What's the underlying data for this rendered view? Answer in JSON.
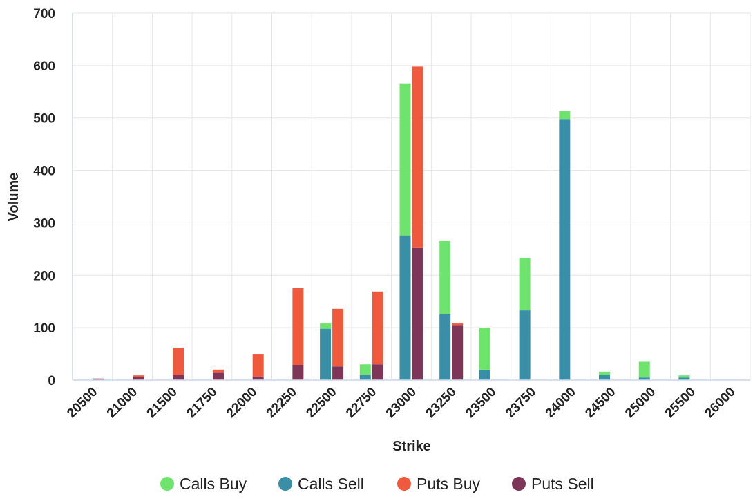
{
  "chart_data": {
    "type": "bar",
    "stacked": true,
    "title": "",
    "xlabel": "Strike",
    "ylabel": "Volume",
    "ylim": [
      0,
      700
    ],
    "yticks": [
      0,
      100,
      200,
      300,
      400,
      500,
      600,
      700
    ],
    "grid": true,
    "legend_position": "bottom-center",
    "categories": [
      "20500",
      "21000",
      "21500",
      "21750",
      "22000",
      "22250",
      "22500",
      "22750",
      "23000",
      "23250",
      "23500",
      "23750",
      "24000",
      "24500",
      "25000",
      "25500",
      "26000"
    ],
    "groups": [
      {
        "stack": "calls",
        "series": [
          {
            "name": "Calls Sell",
            "color": "#3a8ea5",
            "values": [
              0,
              0,
              0,
              0,
              0,
              0,
              98,
              10,
              276,
              126,
              20,
              133,
              498,
              10,
              5,
              5,
              0
            ]
          },
          {
            "name": "Calls Buy",
            "color": "#6ee36e",
            "values": [
              0,
              0,
              0,
              0,
              0,
              0,
              10,
              20,
              290,
              140,
              80,
              100,
              16,
              6,
              30,
              4,
              0
            ]
          }
        ]
      },
      {
        "stack": "puts",
        "series": [
          {
            "name": "Puts Sell",
            "color": "#7d3658",
            "values": [
              3,
              6,
              10,
              15,
              7,
              29,
              26,
              30,
              252,
              105,
              0,
              0,
              0,
              0,
              0,
              0,
              0
            ]
          },
          {
            "name": "Puts Buy",
            "color": "#ef593e",
            "values": [
              0,
              3,
              52,
              5,
              43,
              147,
              110,
              139,
              346,
              3,
              0,
              0,
              0,
              0,
              0,
              0,
              0
            ]
          }
        ]
      }
    ],
    "legend": [
      {
        "name": "Calls Buy",
        "color": "#6ee36e"
      },
      {
        "name": "Calls Sell",
        "color": "#3a8ea5"
      },
      {
        "name": "Puts Buy",
        "color": "#ef593e"
      },
      {
        "name": "Puts Sell",
        "color": "#7d3658"
      }
    ]
  }
}
